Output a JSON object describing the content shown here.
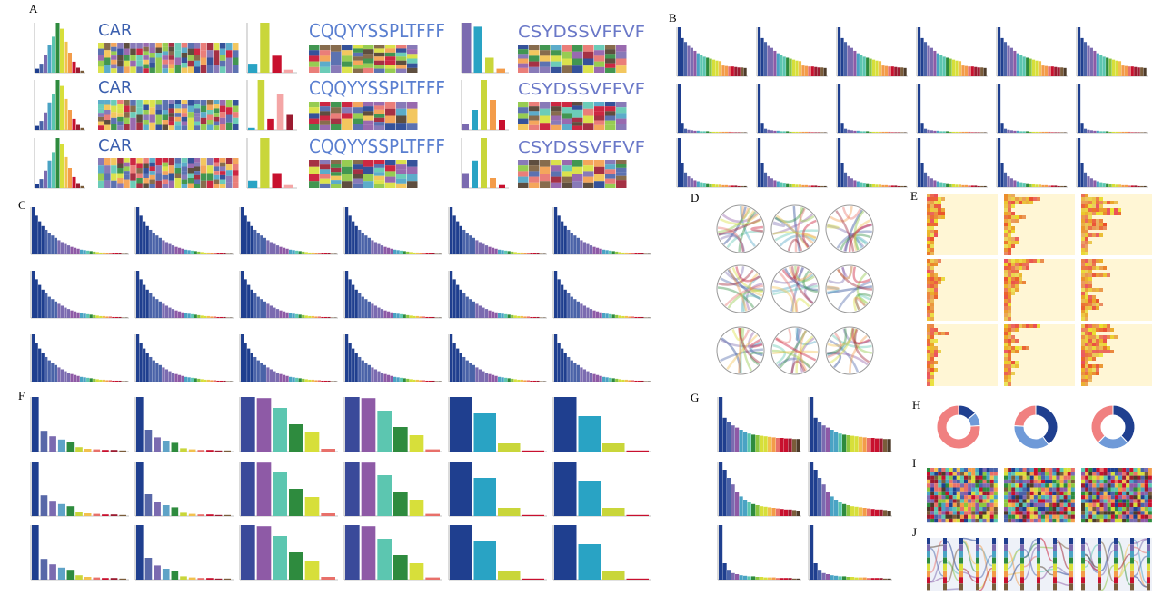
{
  "palette": [
    "#1f3f8f",
    "#4a63a8",
    "#7b6bb0",
    "#8e5aa6",
    "#4aa3c4",
    "#5cc6b0",
    "#2e8b3e",
    "#8cc63f",
    "#d7df3a",
    "#f2c14e",
    "#f39c4a",
    "#e8706a",
    "#c8102e",
    "#9b1b30",
    "#7a5c3a",
    "#4d3b2a"
  ],
  "A": {
    "label": "A",
    "ylim": [
      0,
      100
    ],
    "hist": [
      8,
      18,
      35,
      55,
      72,
      100,
      88,
      62,
      40,
      22,
      10,
      4
    ],
    "logos": [
      "CAR",
      "CQQYYSSPLTFFF",
      "CSYDSSVFFVF"
    ],
    "bars_a": [
      [
        18,
        100,
        34,
        6
      ],
      [
        4,
        100,
        22,
        72,
        30
      ],
      [
        15,
        100,
        30,
        6
      ]
    ],
    "bars_a_colors": [
      "#29a3c4",
      "#c9d63a",
      "#c8102e",
      "#f4a6a6",
      "#9b1b30"
    ],
    "bars_b": [
      [
        100,
        92,
        30,
        8
      ],
      [
        12,
        40,
        100,
        60,
        20
      ],
      [
        30,
        55,
        100,
        20,
        6
      ]
    ],
    "bars_b_colors": [
      "#7b6bb0",
      "#29a3c4",
      "#c9d63a",
      "#f39c4a",
      "#c8102e"
    ]
  },
  "B": {
    "label": "B",
    "ylim": [
      0,
      100
    ],
    "rows": [
      [
        100,
        78,
        70,
        62,
        58,
        52,
        47,
        44,
        40,
        38,
        36,
        34,
        32,
        31,
        22,
        21,
        20,
        20,
        19,
        18,
        18,
        17
      ],
      [
        100,
        20,
        8,
        6,
        5,
        4,
        4,
        3,
        3,
        3,
        2,
        2,
        2,
        2,
        2,
        2,
        2,
        1,
        1,
        1,
        1,
        1
      ],
      [
        100,
        50,
        30,
        22,
        18,
        14,
        12,
        10,
        9,
        8,
        7,
        6,
        5,
        5,
        4,
        4,
        3,
        3,
        3,
        2,
        2,
        2
      ]
    ]
  },
  "C": {
    "label": "C",
    "ylim": [
      0,
      100
    ],
    "values": [
      100,
      82,
      70,
      60,
      52,
      45,
      40,
      35,
      30,
      26,
      22,
      19,
      16,
      14,
      12,
      10,
      9,
      8,
      7,
      6,
      5,
      4,
      4,
      3,
      3,
      2,
      2,
      2,
      1,
      1
    ]
  },
  "D": {
    "label": "D"
  },
  "E": {
    "label": "E"
  },
  "F": {
    "label": "F",
    "ylim": [
      0,
      100
    ],
    "columns": [
      [
        100,
        38,
        28,
        22,
        18,
        8,
        5,
        4,
        3,
        3,
        2
      ],
      [
        100,
        40,
        26,
        20,
        16,
        6,
        4,
        3,
        3,
        2,
        2
      ],
      [
        100,
        98,
        80,
        50,
        35,
        5
      ],
      [
        100,
        98,
        75,
        45,
        30,
        4
      ],
      [
        100,
        70,
        15,
        2
      ],
      [
        100,
        65,
        15,
        2
      ]
    ],
    "colors_many": [
      "#1f3f8f",
      "#5868a8",
      "#7b6bb0",
      "#5fa3c7",
      "#2e8b3e",
      "#c9d63a",
      "#f2c14e",
      "#e8706a",
      "#c8102e",
      "#9b1b30",
      "#7a5c3a"
    ],
    "colors_mid": [
      "#3a4a9a",
      "#8e5aa6",
      "#5cc6b0",
      "#2e8b3e",
      "#d7df3a",
      "#e8706a"
    ],
    "colors_few": [
      "#1f3f8f",
      "#29a3c4",
      "#c9d63a",
      "#c8102e"
    ]
  },
  "G": {
    "label": "G",
    "ylim": [
      0,
      100
    ],
    "rows": [
      [
        100,
        62,
        55,
        48,
        44,
        40,
        36,
        33,
        31,
        30,
        29,
        28,
        27,
        26,
        25,
        25,
        24,
        24,
        23,
        23
      ],
      [
        100,
        85,
        70,
        58,
        45,
        36,
        30,
        26,
        22,
        20,
        18,
        17,
        16,
        15,
        14,
        13,
        12,
        12,
        11,
        10
      ],
      [
        100,
        30,
        18,
        12,
        10,
        8,
        7,
        6,
        6,
        5,
        5,
        4,
        4,
        4,
        3,
        3,
        3,
        3,
        2,
        2
      ]
    ]
  },
  "H": {
    "label": "H",
    "donuts": [
      [
        14,
        10,
        76
      ],
      [
        40,
        36,
        24
      ],
      [
        38,
        24,
        38
      ]
    ],
    "colors": [
      "#1f3f8f",
      "#6f9ad8",
      "#f08080",
      "#e8b89a"
    ]
  },
  "I": {
    "label": "I"
  },
  "J": {
    "label": "J"
  }
}
